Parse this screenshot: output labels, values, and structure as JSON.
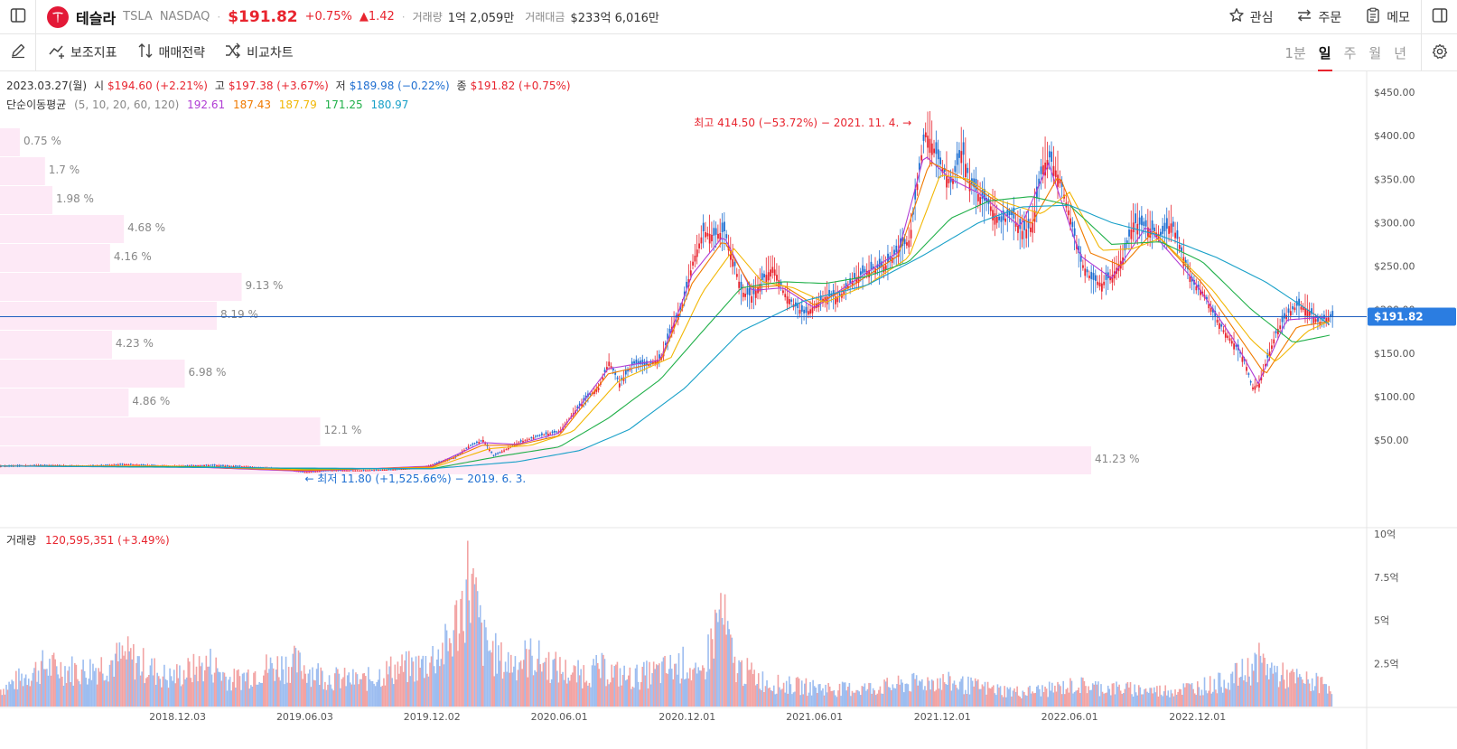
{
  "header": {
    "company": "테슬라",
    "symbol": "TSLA",
    "exchange": "NASDAQ",
    "price": "$191.82",
    "change_pct": "+0.75%",
    "change_abs": "▲1.42",
    "volume_label": "거래량",
    "volume_value": "1억 2,059만",
    "turnover_label": "거래대금",
    "turnover_value": "$233억 6,016만",
    "actions": {
      "watch": "관심",
      "order": "주문",
      "memo": "메모"
    },
    "icons": {
      "sidebar": "sidebar-toggle-icon",
      "logo": "tesla-logo-icon",
      "right_panel": "right-panel-icon"
    }
  },
  "toolbar": {
    "indicators": "보조지표",
    "strategy": "매매전략",
    "compare": "비교차트",
    "periods": [
      "1분",
      "일",
      "주",
      "월",
      "년"
    ],
    "active_period": "일"
  },
  "ohlc": {
    "date": "2023.03.27(월)",
    "open_label": "시",
    "open": "$194.60 (+2.21%)",
    "high_label": "고",
    "high": "$197.38 (+3.67%)",
    "low_label": "저",
    "low": "$189.98 (−0.22%)",
    "close_label": "종",
    "close": "$191.82 (+0.75%)"
  },
  "ma": {
    "label": "단순이동평균",
    "params": "(5, 10, 20, 60, 120)",
    "values": [
      "192.61",
      "187.43",
      "187.79",
      "171.25",
      "180.97"
    ],
    "colors": [
      "#b03cd4",
      "#f07a00",
      "#f2b705",
      "#21b04a",
      "#18a0c8"
    ]
  },
  "volume": {
    "label": "거래량",
    "value": "120,595,351 (+3.49%)"
  },
  "annotations": {
    "high": "최고 414.50 (−53.72%) − 2021. 11. 4.",
    "low": "최저 11.80 (+1,525.66%) − 2019. 6. 3.",
    "last_price": "$191.82"
  },
  "chart_data": {
    "type": "line",
    "price_axis": [
      "$450.00",
      "$400.00",
      "$350.00",
      "$300.00",
      "$250.00",
      "$200.00",
      "$150.00",
      "$100.00",
      "$50.00"
    ],
    "price_ticks": [
      450,
      400,
      350,
      300,
      250,
      200,
      150,
      100,
      50
    ],
    "volume_axis": [
      "10억",
      "7.5억",
      "5억",
      "2.5억"
    ],
    "volume_ticks": [
      10,
      7.5,
      5,
      2.5
    ],
    "x_axis": [
      "2018.12.03",
      "2019.06.03",
      "2019.12.02",
      "2020.06.01",
      "2020.12.01",
      "2021.06.01",
      "2021.12.01",
      "2022.06.01",
      "2022.12.01"
    ],
    "x_tick_days": [
      254,
      436,
      618,
      800,
      983,
      1165,
      1348,
      1530,
      1713
    ],
    "x_range_days": [
      0,
      1942
    ],
    "price_series": [
      [
        0,
        20
      ],
      [
        60,
        21
      ],
      [
        120,
        20
      ],
      [
        180,
        22
      ],
      [
        240,
        20
      ],
      [
        300,
        21
      ],
      [
        360,
        19
      ],
      [
        400,
        17
      ],
      [
        436,
        13
      ],
      [
        470,
        15
      ],
      [
        520,
        15
      ],
      [
        560,
        16
      ],
      [
        600,
        18
      ],
      [
        618,
        22
      ],
      [
        650,
        30
      ],
      [
        670,
        43
      ],
      [
        690,
        50
      ],
      [
        705,
        32
      ],
      [
        720,
        38
      ],
      [
        740,
        47
      ],
      [
        770,
        55
      ],
      [
        800,
        60
      ],
      [
        820,
        82
      ],
      [
        840,
        100
      ],
      [
        855,
        110
      ],
      [
        870,
        140
      ],
      [
        885,
        115
      ],
      [
        905,
        138
      ],
      [
        925,
        136
      ],
      [
        945,
        145
      ],
      [
        960,
        180
      ],
      [
        975,
        205
      ],
      [
        990,
        255
      ],
      [
        1005,
        290
      ],
      [
        1020,
        285
      ],
      [
        1035,
        290
      ],
      [
        1050,
        250
      ],
      [
        1060,
        220
      ],
      [
        1075,
        215
      ],
      [
        1090,
        235
      ],
      [
        1105,
        250
      ],
      [
        1120,
        220
      ],
      [
        1135,
        205
      ],
      [
        1150,
        195
      ],
      [
        1165,
        205
      ],
      [
        1180,
        215
      ],
      [
        1200,
        215
      ],
      [
        1220,
        235
      ],
      [
        1240,
        245
      ],
      [
        1265,
        250
      ],
      [
        1285,
        270
      ],
      [
        1300,
        280
      ],
      [
        1312,
        350
      ],
      [
        1322,
        405
      ],
      [
        1330,
        395
      ],
      [
        1345,
        365
      ],
      [
        1360,
        345
      ],
      [
        1375,
        385
      ],
      [
        1385,
        350
      ],
      [
        1400,
        330
      ],
      [
        1415,
        320
      ],
      [
        1430,
        300
      ],
      [
        1445,
        310
      ],
      [
        1460,
        290
      ],
      [
        1475,
        295
      ],
      [
        1490,
        365
      ],
      [
        1500,
        375
      ],
      [
        1515,
        350
      ],
      [
        1530,
        305
      ],
      [
        1545,
        255
      ],
      [
        1560,
        235
      ],
      [
        1575,
        230
      ],
      [
        1590,
        240
      ],
      [
        1605,
        260
      ],
      [
        1620,
        300
      ],
      [
        1640,
        295
      ],
      [
        1660,
        285
      ],
      [
        1675,
        300
      ],
      [
        1690,
        265
      ],
      [
        1705,
        230
      ],
      [
        1720,
        220
      ],
      [
        1735,
        195
      ],
      [
        1750,
        175
      ],
      [
        1765,
        160
      ],
      [
        1780,
        140
      ],
      [
        1790,
        110
      ],
      [
        1800,
        115
      ],
      [
        1810,
        140
      ],
      [
        1825,
        175
      ],
      [
        1840,
        195
      ],
      [
        1855,
        205
      ],
      [
        1870,
        200
      ],
      [
        1885,
        185
      ],
      [
        1895,
        190
      ],
      [
        1905,
        192
      ]
    ],
    "ma_series": [
      {
        "values": [
          [
            0,
            20
          ],
          [
            240,
            20
          ],
          [
            436,
            14
          ],
          [
            618,
            20
          ],
          [
            690,
            47
          ],
          [
            740,
            45
          ],
          [
            800,
            58
          ],
          [
            870,
            132
          ],
          [
            945,
            142
          ],
          [
            990,
            240
          ],
          [
            1035,
            285
          ],
          [
            1075,
            222
          ],
          [
            1120,
            225
          ],
          [
            1165,
            202
          ],
          [
            1220,
            232
          ],
          [
            1285,
            266
          ],
          [
            1322,
            378
          ],
          [
            1360,
            350
          ],
          [
            1400,
            334
          ],
          [
            1460,
            295
          ],
          [
            1500,
            368
          ],
          [
            1545,
            262
          ],
          [
            1590,
            236
          ],
          [
            1640,
            296
          ],
          [
            1705,
            236
          ],
          [
            1765,
            165
          ],
          [
            1800,
            115
          ],
          [
            1840,
            188
          ],
          [
            1905,
            192
          ]
        ]
      },
      {
        "values": [
          [
            0,
            20
          ],
          [
            240,
            20
          ],
          [
            436,
            15
          ],
          [
            618,
            19
          ],
          [
            690,
            44
          ],
          [
            740,
            44
          ],
          [
            800,
            55
          ],
          [
            870,
            126
          ],
          [
            945,
            140
          ],
          [
            990,
            230
          ],
          [
            1035,
            280
          ],
          [
            1075,
            225
          ],
          [
            1120,
            228
          ],
          [
            1165,
            205
          ],
          [
            1220,
            228
          ],
          [
            1285,
            262
          ],
          [
            1330,
            370
          ],
          [
            1375,
            352
          ],
          [
            1415,
            330
          ],
          [
            1475,
            298
          ],
          [
            1515,
            355
          ],
          [
            1560,
            265
          ],
          [
            1605,
            250
          ],
          [
            1650,
            290
          ],
          [
            1720,
            230
          ],
          [
            1780,
            160
          ],
          [
            1810,
            125
          ],
          [
            1855,
            180
          ],
          [
            1905,
            187
          ]
        ]
      },
      {
        "values": [
          [
            0,
            20
          ],
          [
            240,
            20
          ],
          [
            436,
            16
          ],
          [
            618,
            18
          ],
          [
            700,
            40
          ],
          [
            760,
            44
          ],
          [
            820,
            60
          ],
          [
            885,
            118
          ],
          [
            960,
            145
          ],
          [
            1005,
            220
          ],
          [
            1050,
            270
          ],
          [
            1090,
            232
          ],
          [
            1135,
            225
          ],
          [
            1180,
            208
          ],
          [
            1240,
            228
          ],
          [
            1300,
            260
          ],
          [
            1345,
            355
          ],
          [
            1385,
            350
          ],
          [
            1430,
            325
          ],
          [
            1490,
            310
          ],
          [
            1530,
            335
          ],
          [
            1575,
            268
          ],
          [
            1620,
            270
          ],
          [
            1660,
            282
          ],
          [
            1735,
            222
          ],
          [
            1790,
            165
          ],
          [
            1825,
            140
          ],
          [
            1870,
            175
          ],
          [
            1905,
            188
          ]
        ]
      },
      {
        "values": [
          [
            0,
            20
          ],
          [
            300,
            19
          ],
          [
            436,
            17
          ],
          [
            618,
            17
          ],
          [
            720,
            32
          ],
          [
            800,
            42
          ],
          [
            870,
            75
          ],
          [
            945,
            120
          ],
          [
            1005,
            175
          ],
          [
            1060,
            225
          ],
          [
            1120,
            232
          ],
          [
            1180,
            230
          ],
          [
            1240,
            238
          ],
          [
            1300,
            255
          ],
          [
            1360,
            305
          ],
          [
            1415,
            325
          ],
          [
            1475,
            330
          ],
          [
            1530,
            320
          ],
          [
            1590,
            275
          ],
          [
            1660,
            278
          ],
          [
            1720,
            255
          ],
          [
            1790,
            200
          ],
          [
            1850,
            162
          ],
          [
            1905,
            171
          ]
        ]
      },
      {
        "values": [
          [
            0,
            20
          ],
          [
            360,
            18
          ],
          [
            618,
            17
          ],
          [
            740,
            25
          ],
          [
            830,
            38
          ],
          [
            900,
            62
          ],
          [
            980,
            110
          ],
          [
            1060,
            175
          ],
          [
            1150,
            210
          ],
          [
            1240,
            228
          ],
          [
            1320,
            262
          ],
          [
            1400,
            300
          ],
          [
            1460,
            318
          ],
          [
            1530,
            320
          ],
          [
            1590,
            300
          ],
          [
            1660,
            285
          ],
          [
            1740,
            260
          ],
          [
            1810,
            232
          ],
          [
            1870,
            200
          ],
          [
            1905,
            181
          ]
        ]
      }
    ],
    "volume_series": [
      [
        0,
        1.2
      ],
      [
        60,
        2.8
      ],
      [
        120,
        2.5
      ],
      [
        180,
        3.5
      ],
      [
        240,
        2.0
      ],
      [
        300,
        3.0
      ],
      [
        330,
        1.8
      ],
      [
        380,
        2.7
      ],
      [
        420,
        3.0
      ],
      [
        470,
        2.0
      ],
      [
        520,
        1.8
      ],
      [
        560,
        2.6
      ],
      [
        600,
        2.8
      ],
      [
        640,
        4.2
      ],
      [
        660,
        7.0
      ],
      [
        670,
        9.2
      ],
      [
        690,
        4.5
      ],
      [
        720,
        3.0
      ],
      [
        760,
        3.5
      ],
      [
        790,
        2.8
      ],
      [
        820,
        2.2
      ],
      [
        860,
        2.6
      ],
      [
        900,
        2.0
      ],
      [
        940,
        2.4
      ],
      [
        980,
        3.0
      ],
      [
        1000,
        1.8
      ],
      [
        1030,
        6.7
      ],
      [
        1050,
        2.8
      ],
      [
        1100,
        1.6
      ],
      [
        1150,
        1.4
      ],
      [
        1200,
        1.2
      ],
      [
        1250,
        1.3
      ],
      [
        1300,
        1.6
      ],
      [
        1340,
        1.8
      ],
      [
        1380,
        1.5
      ],
      [
        1420,
        1.2
      ],
      [
        1460,
        1.0
      ],
      [
        1500,
        1.2
      ],
      [
        1540,
        1.5
      ],
      [
        1580,
        1.3
      ],
      [
        1620,
        1.2
      ],
      [
        1660,
        1.1
      ],
      [
        1700,
        1.3
      ],
      [
        1740,
        1.6
      ],
      [
        1780,
        2.4
      ],
      [
        1800,
        3.1
      ],
      [
        1830,
        2.2
      ],
      [
        1860,
        1.8
      ],
      [
        1905,
        1.5
      ]
    ],
    "volume_profile": [
      {
        "label": "0.75 %",
        "pct": 0.75
      },
      {
        "label": "1.7 %",
        "pct": 1.7
      },
      {
        "label": "1.98 %",
        "pct": 1.98
      },
      {
        "label": "4.68 %",
        "pct": 4.68
      },
      {
        "label": "4.16 %",
        "pct": 4.16
      },
      {
        "label": "9.13 %",
        "pct": 9.13
      },
      {
        "label": "8.19 %",
        "pct": 8.19
      },
      {
        "label": "4.23 %",
        "pct": 4.23
      },
      {
        "label": "6.98 %",
        "pct": 6.98
      },
      {
        "label": "4.86 %",
        "pct": 4.86
      },
      {
        "label": "12.1 %",
        "pct": 12.1
      },
      {
        "label": "41.23 %",
        "pct": 41.23
      }
    ],
    "last_price": 191.82,
    "high": {
      "day": 1322,
      "price": 414.5
    },
    "low": {
      "day": 436,
      "price": 11.8
    },
    "colors": {
      "up": "#e8242e",
      "down": "#1f6fd1",
      "price_line": "#1f5fbf",
      "profile": "#fde9f6",
      "vol_up": "#f2a3a3",
      "vol_down": "#9dbdf0"
    }
  }
}
